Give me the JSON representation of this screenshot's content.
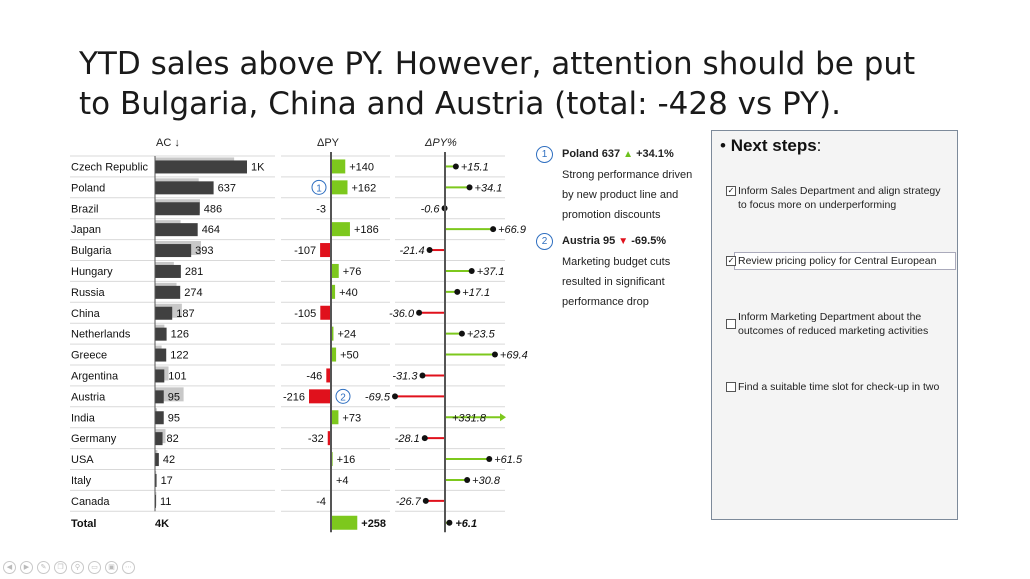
{
  "slide": {
    "title_line1": "YTD sales above PY. However, attention should be put",
    "title_line2": "to Bulgaria, China and Austria (total: -428 vs PY)."
  },
  "chart_data": {
    "type": "table",
    "headers": {
      "ac": "AC ↓",
      "dpy": "ΔPY",
      "dpypct": "ΔPY%"
    },
    "rows": [
      {
        "country": "Czech Republic",
        "ac": 1000,
        "ac_label": "1K",
        "dpy": 140,
        "dpy_label": "+140",
        "pct": 15.1,
        "pct_label": "+15.1"
      },
      {
        "country": "Poland",
        "ac": 637,
        "ac_label": "637",
        "dpy": 162,
        "dpy_label": "+162",
        "pct": 34.1,
        "pct_label": "+34.1",
        "marker": "1"
      },
      {
        "country": "Brazil",
        "ac": 486,
        "ac_label": "486",
        "dpy": -3,
        "dpy_label": "-3",
        "pct": -0.6,
        "pct_label": "-0.6"
      },
      {
        "country": "Japan",
        "ac": 464,
        "ac_label": "464",
        "dpy": 186,
        "dpy_label": "+186",
        "pct": 66.9,
        "pct_label": "+66.9"
      },
      {
        "country": "Bulgaria",
        "ac": 393,
        "ac_label": "393",
        "dpy": -107,
        "dpy_label": "-107",
        "pct": -21.4,
        "pct_label": "-21.4"
      },
      {
        "country": "Hungary",
        "ac": 281,
        "ac_label": "281",
        "dpy": 76,
        "dpy_label": "+76",
        "pct": 37.1,
        "pct_label": "+37.1"
      },
      {
        "country": "Russia",
        "ac": 274,
        "ac_label": "274",
        "dpy": 40,
        "dpy_label": "+40",
        "pct": 17.1,
        "pct_label": "+17.1"
      },
      {
        "country": "China",
        "ac": 187,
        "ac_label": "187",
        "dpy": -105,
        "dpy_label": "-105",
        "pct": -36.0,
        "pct_label": "-36.0"
      },
      {
        "country": "Netherlands",
        "ac": 126,
        "ac_label": "126",
        "dpy": 24,
        "dpy_label": "+24",
        "pct": 23.5,
        "pct_label": "+23.5"
      },
      {
        "country": "Greece",
        "ac": 122,
        "ac_label": "122",
        "dpy": 50,
        "dpy_label": "+50",
        "pct": 69.4,
        "pct_label": "+69.4"
      },
      {
        "country": "Argentina",
        "ac": 101,
        "ac_label": "101",
        "dpy": -46,
        "dpy_label": "-46",
        "pct": -31.3,
        "pct_label": "-31.3"
      },
      {
        "country": "Austria",
        "ac": 95,
        "ac_label": "95",
        "dpy": -216,
        "dpy_label": "-216",
        "pct": -69.5,
        "pct_label": "-69.5",
        "marker": "2"
      },
      {
        "country": "India",
        "ac": 95,
        "ac_label": "95",
        "dpy": 73,
        "dpy_label": "+73",
        "pct": 331.8,
        "pct_label": "+331.8",
        "clipped": true
      },
      {
        "country": "Germany",
        "ac": 82,
        "ac_label": "82",
        "dpy": -32,
        "dpy_label": "-32",
        "pct": -28.1,
        "pct_label": "-28.1"
      },
      {
        "country": "USA",
        "ac": 42,
        "ac_label": "42",
        "dpy": 16,
        "dpy_label": "+16",
        "pct": 61.5,
        "pct_label": "+61.5"
      },
      {
        "country": "Italy",
        "ac": 17,
        "ac_label": "17",
        "dpy": 4,
        "dpy_label": "+4",
        "pct": 30.8,
        "pct_label": "+30.8"
      },
      {
        "country": "Canada",
        "ac": 11,
        "ac_label": "11",
        "dpy": -4,
        "dpy_label": "-4",
        "pct": -26.7,
        "pct_label": "-26.7"
      }
    ],
    "total": {
      "country": "Total",
      "ac_label": "4K",
      "dpy": 258,
      "dpy_label": "+258",
      "pct": 6.1,
      "pct_label": "+6.1"
    },
    "colors": {
      "ac": "#404040",
      "py": "#c8c8c8",
      "positive": "#7dc81d",
      "negative": "#e0111c",
      "axis": "#555555",
      "marker": "#2f6fc0"
    }
  },
  "notes": [
    {
      "num": "1",
      "head": "Poland 637",
      "delta": "+34.1%",
      "dir": "up",
      "text": "Strong performance driven by new product line and promotion discounts"
    },
    {
      "num": "2",
      "head": "Austria 95",
      "delta": "-69.5%",
      "dir": "down",
      "text": "Marketing budget cuts resulted in significant performance drop"
    }
  ],
  "panel": {
    "title_bullet": "•",
    "title_bold": "Next steps",
    "title_colon": ":",
    "tasks": [
      {
        "checked": true,
        "text": "Inform Sales Department and align strategy to focus more on underperforming"
      },
      {
        "checked": true,
        "text": "Review pricing policy for Central European"
      },
      {
        "checked": false,
        "text": "Inform Marketing Department about the outcomes of reduced marketing activities"
      },
      {
        "checked": false,
        "text": "Find a suitable time slot for check-up in two"
      }
    ]
  },
  "controls": [
    "prev-icon",
    "next-icon",
    "pen-icon",
    "copy-icon",
    "zoom-icon",
    "subtitles-icon",
    "monitor-icon",
    "more-icon"
  ]
}
